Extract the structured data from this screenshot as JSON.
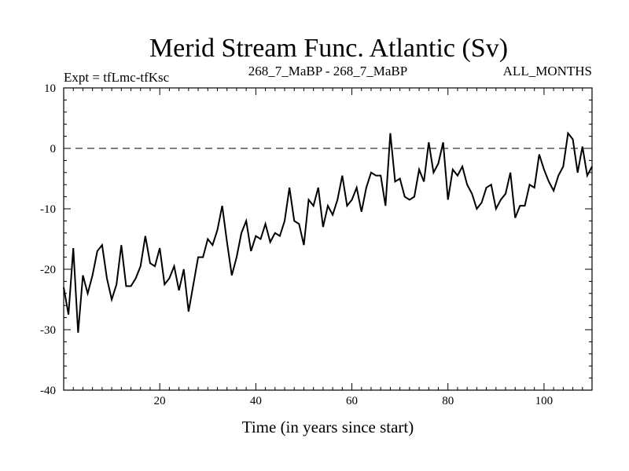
{
  "chart_data": {
    "type": "line",
    "title": "Merid Stream Func. Atlantic (Sv)",
    "subtitle_left": "Expt = tfLmc-tfKsc",
    "subtitle_center": "268_7_MaBP - 268_7_MaBP",
    "subtitle_right": "ALL_MONTHS",
    "xlabel": "Time (in years since start)",
    "ylabel": "",
    "xlim": [
      0,
      110
    ],
    "ylim": [
      -40,
      10
    ],
    "x_major_ticks": [
      20,
      40,
      60,
      80,
      100
    ],
    "x_major_tick_labels": [
      "20",
      "40",
      "60",
      "80",
      "100"
    ],
    "y_major_ticks": [
      10,
      0,
      -10,
      -20,
      -30,
      -40
    ],
    "y_major_tick_labels": [
      "10",
      "0",
      "-10",
      "-20",
      "-30",
      "-40"
    ],
    "reference_line": {
      "y": 0,
      "style": "dashed"
    },
    "series": [
      {
        "name": "tfLmc-tfKsc",
        "x": [
          0,
          1,
          2,
          3,
          4,
          5,
          6,
          7,
          8,
          9,
          10,
          11,
          12,
          13,
          14,
          15,
          16,
          17,
          18,
          19,
          20,
          21,
          22,
          23,
          24,
          25,
          26,
          27,
          28,
          29,
          30,
          31,
          32,
          33,
          34,
          35,
          36,
          37,
          38,
          39,
          40,
          41,
          42,
          43,
          44,
          45,
          46,
          47,
          48,
          49,
          50,
          51,
          52,
          53,
          54,
          55,
          56,
          57,
          58,
          59,
          60,
          61,
          62,
          63,
          64,
          65,
          66,
          67,
          68,
          69,
          70,
          71,
          72,
          73,
          74,
          75,
          76,
          77,
          78,
          79,
          80,
          81,
          82,
          83,
          84,
          85,
          86,
          87,
          88,
          89,
          90,
          91,
          92,
          93,
          94,
          95,
          96,
          97,
          98,
          99,
          100,
          101,
          102,
          103,
          104,
          105,
          106,
          107,
          108,
          109,
          110
        ],
        "values": [
          -23.0,
          -27.5,
          -16.5,
          -30.5,
          -21.0,
          -24.0,
          -21.0,
          -17.0,
          -16.0,
          -21.5,
          -25.0,
          -22.5,
          -16.0,
          -22.8,
          -22.8,
          -21.5,
          -19.5,
          -14.5,
          -19.0,
          -19.5,
          -16.5,
          -22.5,
          -21.5,
          -19.5,
          -23.5,
          -20.0,
          -27.0,
          -22.5,
          -18.0,
          -18.0,
          -15.0,
          -16.0,
          -13.5,
          -9.5,
          -15.5,
          -21.0,
          -18.0,
          -14.0,
          -12.0,
          -17.0,
          -14.5,
          -15.0,
          -12.5,
          -15.5,
          -14.0,
          -14.5,
          -12.0,
          -6.5,
          -12.0,
          -12.5,
          -16.0,
          -8.5,
          -9.5,
          -6.5,
          -13.0,
          -9.5,
          -11.0,
          -8.5,
          -4.5,
          -9.5,
          -8.5,
          -6.5,
          -10.5,
          -6.5,
          -4.0,
          -4.5,
          -4.5,
          -9.5,
          2.5,
          -5.5,
          -5.0,
          -8.0,
          -8.5,
          -8.0,
          -3.5,
          -5.5,
          1.0,
          -4.0,
          -2.5,
          1.0,
          -8.5,
          -3.5,
          -4.5,
          -3.0,
          -6.0,
          -7.5,
          -10.0,
          -9.0,
          -6.5,
          -6.0,
          -10.0,
          -8.5,
          -7.5,
          -4.0,
          -11.5,
          -9.5,
          -9.5,
          -6.0,
          -6.5,
          -1.0,
          -3.5,
          -5.5,
          -7.0,
          -4.5,
          -3.0,
          2.5,
          1.5,
          -4.0,
          0.3,
          -4.5,
          -3.0
        ]
      }
    ]
  }
}
